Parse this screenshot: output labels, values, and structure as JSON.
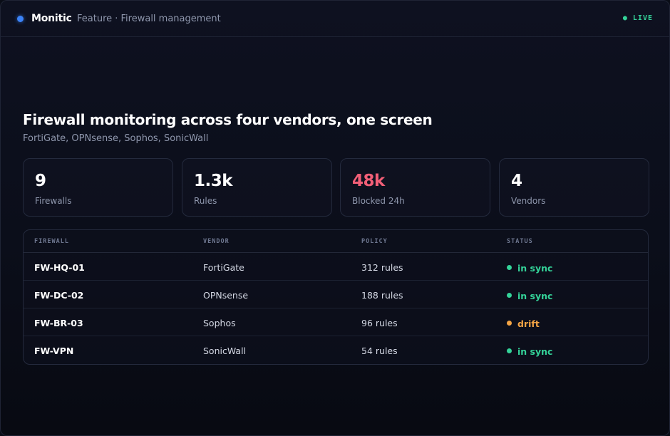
{
  "header": {
    "brand": "Monitic",
    "feature": "Feature · Firewall management",
    "live": "● LIVE"
  },
  "hero": {
    "title": "Firewall monitoring across four vendors, one screen",
    "subtitle": "FortiGate, OPNsense, Sophos, SonicWall"
  },
  "stats": [
    {
      "value": "9",
      "label": "Firewalls"
    },
    {
      "value": "1.3k",
      "label": "Rules"
    },
    {
      "value": "48k",
      "label": "Blocked 24h",
      "color": "#f25f77"
    },
    {
      "value": "4",
      "label": "Vendors"
    }
  ],
  "table": {
    "headers": [
      "FIREWALL",
      "VENDOR",
      "POLICY",
      "STATUS"
    ],
    "rows": [
      {
        "firewall": "FW-HQ-01",
        "vendor": "FortiGate",
        "policy": "312 rules",
        "status": "in sync",
        "status_color": "#34d399"
      },
      {
        "firewall": "FW-DC-02",
        "vendor": "OPNsense",
        "policy": "188 rules",
        "status": "in sync",
        "status_color": "#34d399"
      },
      {
        "firewall": "FW-BR-03",
        "vendor": "Sophos",
        "policy": "96 rules",
        "status": "drift",
        "status_color": "#f5a545"
      },
      {
        "firewall": "FW-VPN",
        "vendor": "SonicWall",
        "policy": "54 rules",
        "status": "in sync",
        "status_color": "#34d399"
      }
    ]
  }
}
